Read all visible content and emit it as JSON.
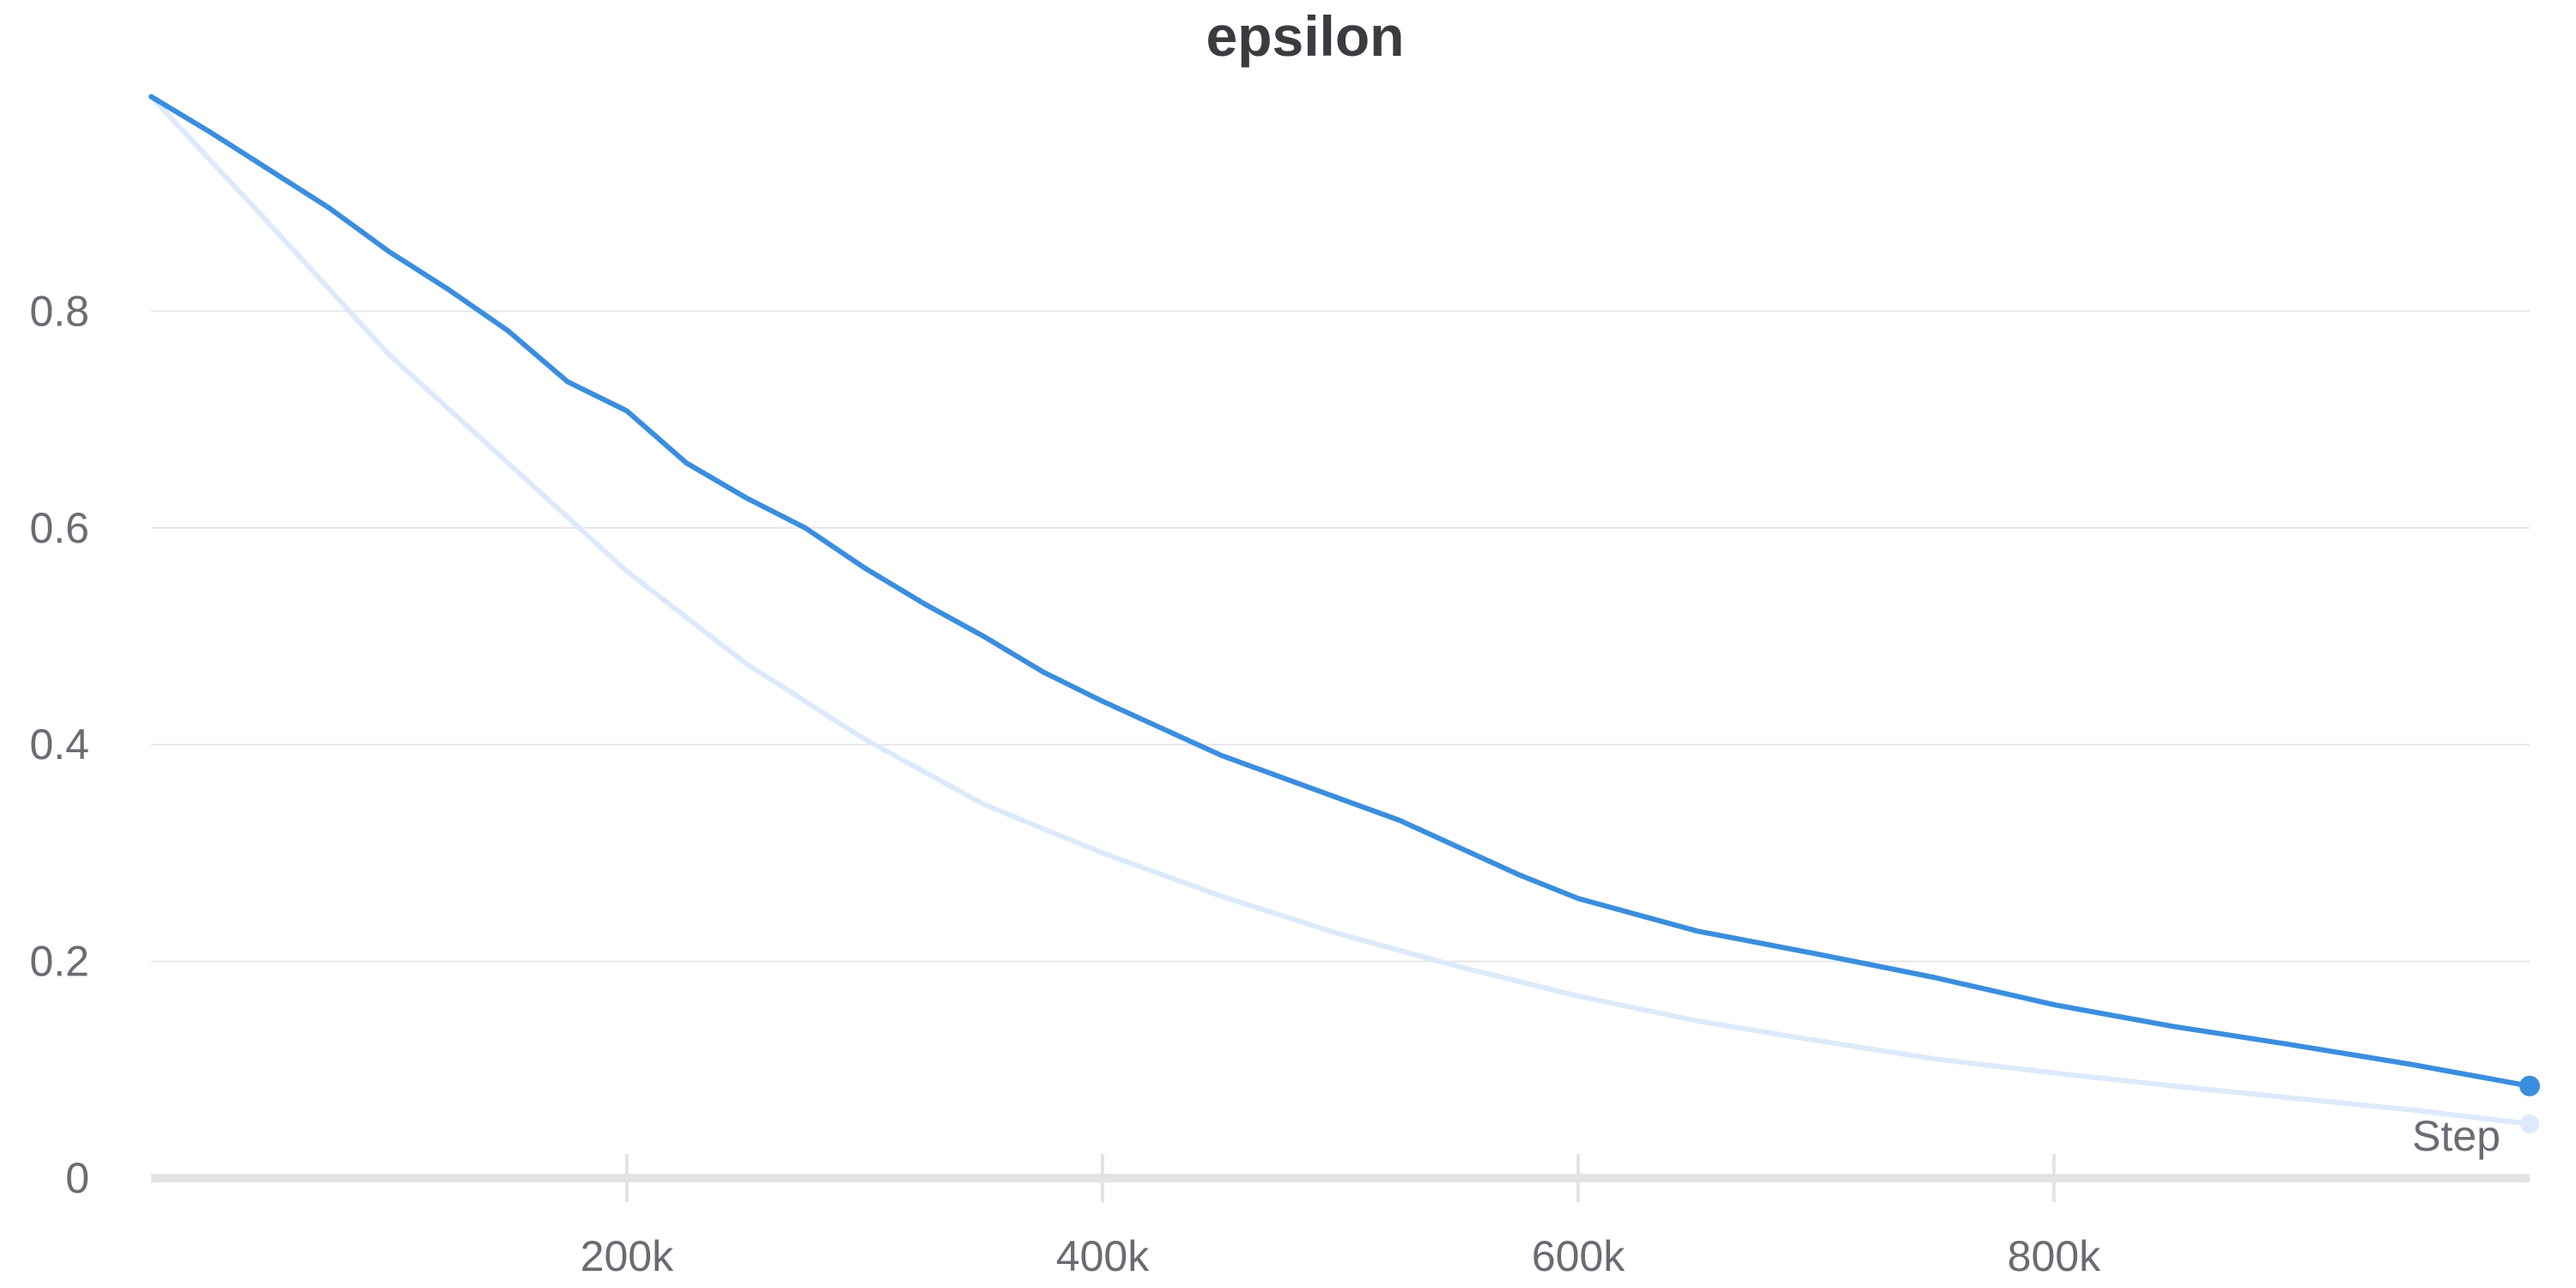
{
  "chart_data": {
    "type": "line",
    "title": "epsilon",
    "xlabel": "Step",
    "ylabel": "",
    "xlim": [
      0,
      1000000
    ],
    "ylim": [
      0,
      1.0
    ],
    "x_ticks": [
      200000,
      400000,
      600000,
      800000
    ],
    "x_tick_labels": [
      "200k",
      "400k",
      "600k",
      "800k"
    ],
    "y_ticks": [
      0,
      0.2,
      0.4,
      0.6,
      0.8
    ],
    "y_tick_labels": [
      "0",
      "0.2",
      "0.4",
      "0.6",
      "0.8"
    ],
    "grid": "horizontal",
    "legend": "none",
    "series": [
      {
        "color": "#3b8ede",
        "style": "primary",
        "x": [
          0,
          25000,
          50000,
          75000,
          100000,
          125000,
          150000,
          175000,
          200000,
          225000,
          250000,
          275000,
          300000,
          325000,
          350000,
          375000,
          400000,
          425000,
          450000,
          475000,
          500000,
          525000,
          550000,
          575000,
          600000,
          650000,
          700000,
          750000,
          800000,
          850000,
          900000,
          950000,
          1000000
        ],
        "values": [
          0.998,
          0.965,
          0.93,
          0.895,
          0.855,
          0.82,
          0.782,
          0.735,
          0.708,
          0.66,
          0.628,
          0.6,
          0.563,
          0.53,
          0.5,
          0.467,
          0.44,
          0.415,
          0.39,
          0.37,
          0.35,
          0.33,
          0.305,
          0.28,
          0.258,
          0.228,
          0.207,
          0.185,
          0.16,
          0.14,
          0.123,
          0.105,
          0.085
        ]
      },
      {
        "color": "#dceafa",
        "style": "faint",
        "x": [
          0,
          50000,
          100000,
          150000,
          200000,
          250000,
          300000,
          350000,
          400000,
          450000,
          500000,
          550000,
          600000,
          650000,
          700000,
          750000,
          800000,
          850000,
          900000,
          950000,
          1000000
        ],
        "values": [
          0.998,
          0.88,
          0.76,
          0.66,
          0.56,
          0.475,
          0.405,
          0.345,
          0.3,
          0.26,
          0.225,
          0.195,
          0.168,
          0.145,
          0.127,
          0.11,
          0.097,
          0.085,
          0.074,
          0.063,
          0.05
        ]
      }
    ]
  }
}
